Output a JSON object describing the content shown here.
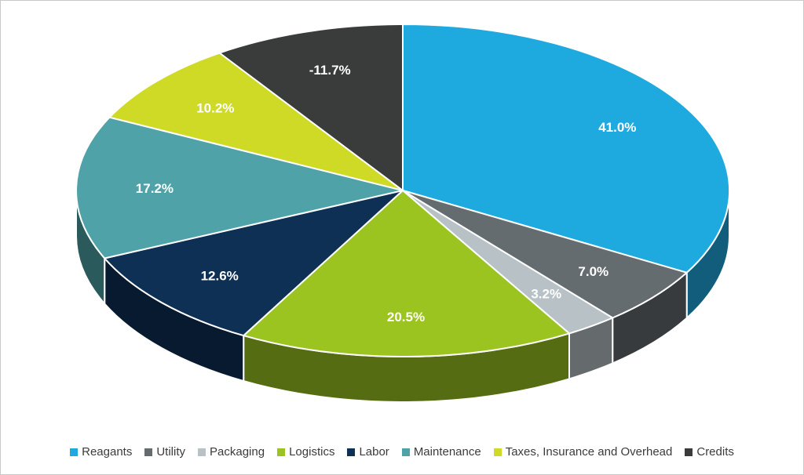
{
  "chart_data": {
    "type": "pie",
    "style": "3d",
    "title": "",
    "legend_position": "bottom",
    "direction": "clockwise",
    "start_angle_deg": 0,
    "categories": [
      "Reagants",
      "Utility",
      "Packaging",
      "Logistics",
      "Labor",
      "Maintenance",
      "Taxes, Insurance and Overhead",
      "Credits"
    ],
    "values": [
      41.0,
      7.0,
      3.2,
      20.5,
      12.6,
      17.2,
      10.2,
      -11.7
    ],
    "labels": [
      "41.0%",
      "7.0%",
      "3.2%",
      "20.5%",
      "12.6%",
      "17.2%",
      "10.2%",
      "-11.7%"
    ],
    "colors": [
      "#1EA9DF",
      "#646C70",
      "#B7C1C6",
      "#9BC421",
      "#0E3055",
      "#4FA3A8",
      "#CFDA27",
      "#3A3B3B"
    ],
    "label_color": "#FFFFFF",
    "legend_text_color": "#3B3B3B",
    "note": "negative value Credits plotted as absolute size"
  }
}
